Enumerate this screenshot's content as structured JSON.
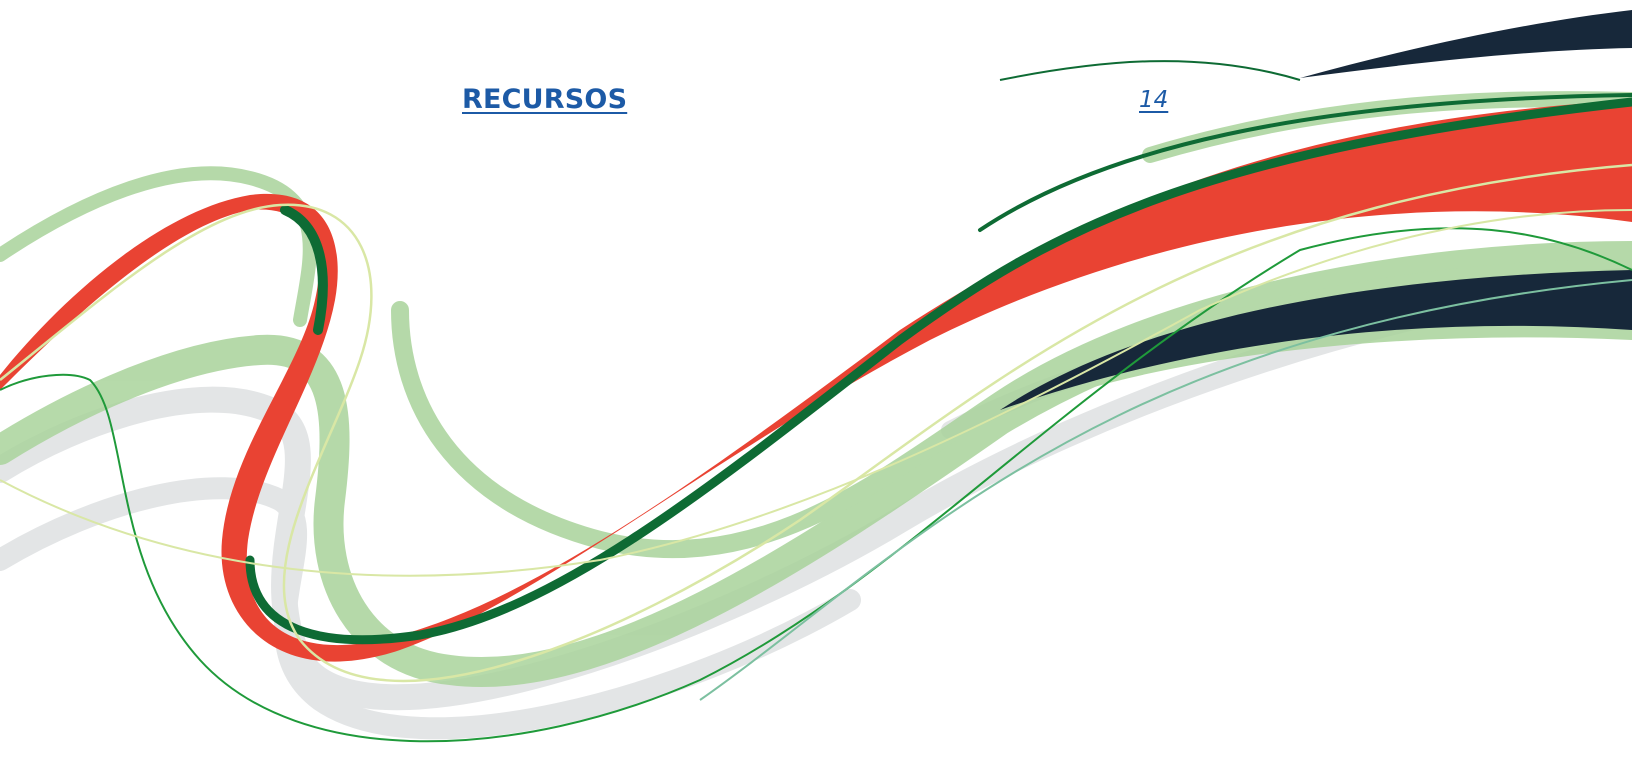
{
  "toc": {
    "entries": [
      {
        "title": "RECURSOS",
        "page": "14"
      }
    ]
  },
  "decoration": {
    "name": "wave-ribbons",
    "colors": {
      "red": "#e94333",
      "dark_green": "#0e6b34",
      "light_green": "#a9d39b",
      "pale_yellow_green": "#d9e7a5",
      "navy": "#17283a",
      "light_gray": "#e3e5e6"
    }
  }
}
